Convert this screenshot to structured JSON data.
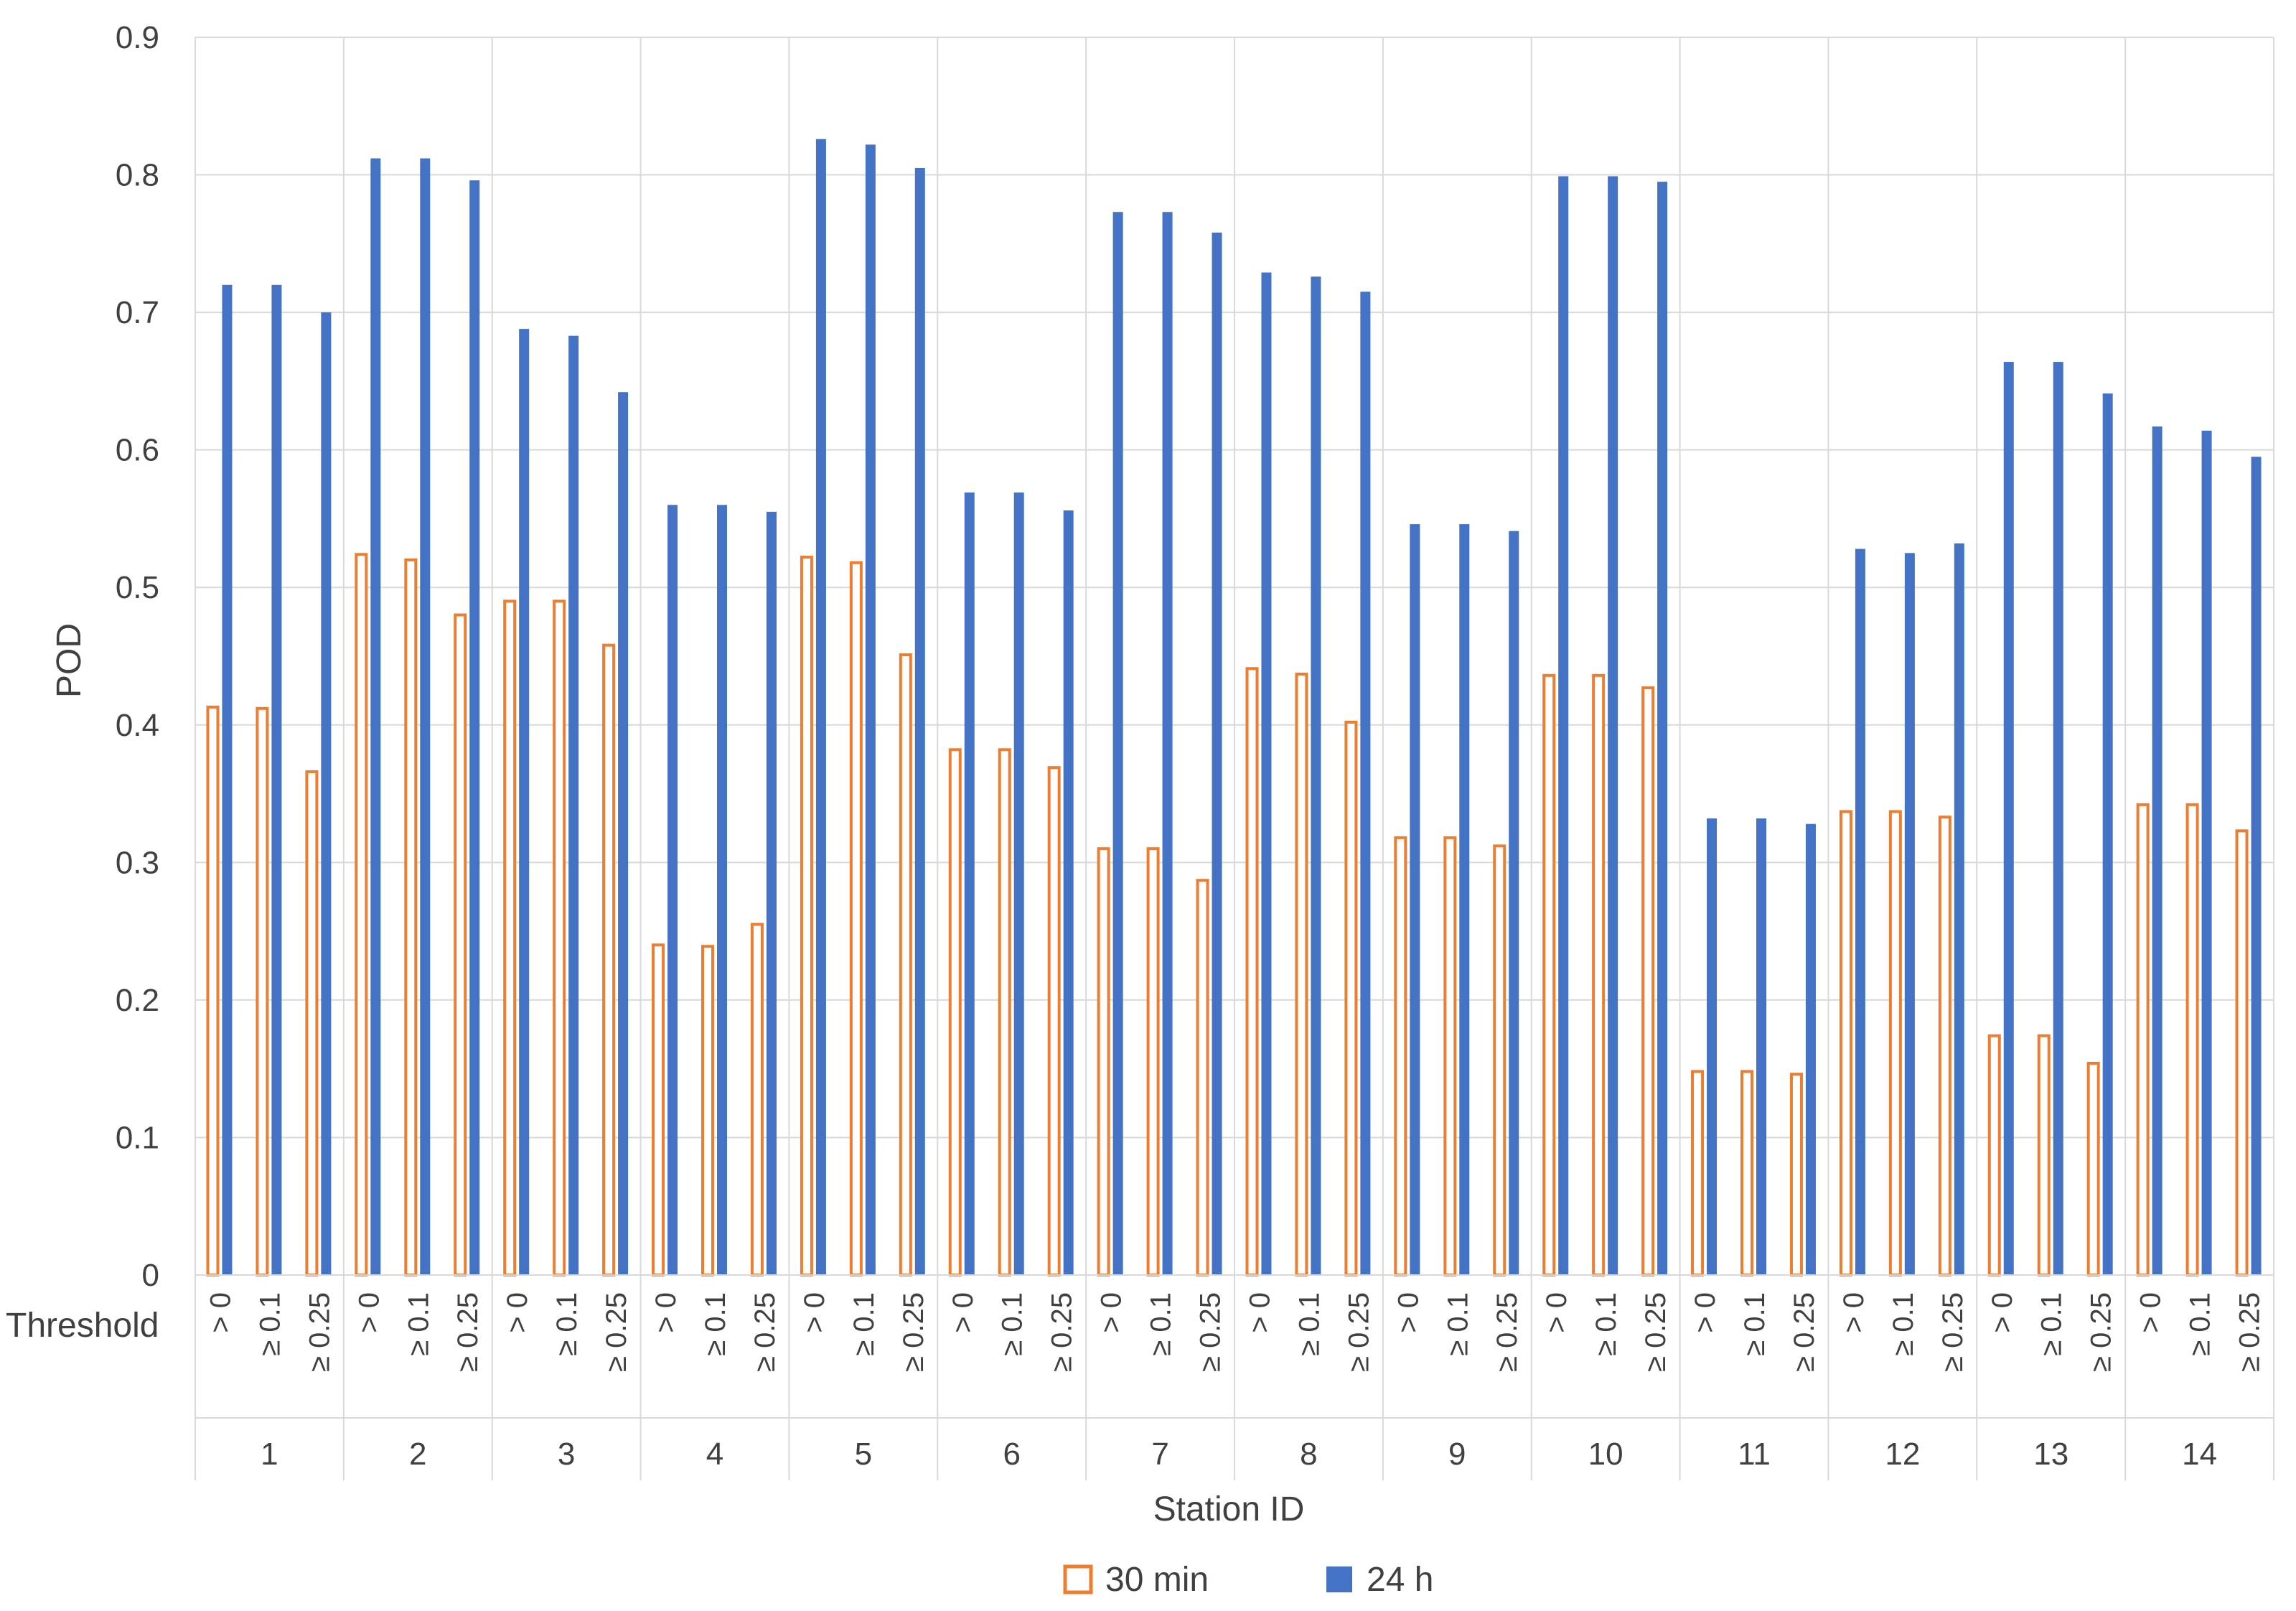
{
  "chart_data": {
    "type": "bar",
    "xlabel": "Station ID",
    "ylabel": "POD",
    "row_header": "Threshold",
    "ylim": [
      0,
      0.9
    ],
    "yticks": [
      "0",
      "0.1",
      "0.2",
      "0.3",
      "0.4",
      "0.5",
      "0.6",
      "0.7",
      "0.8",
      "0.9"
    ],
    "grid": true,
    "legend_position": "bottom",
    "stations": [
      "1",
      "2",
      "3",
      "4",
      "5",
      "6",
      "7",
      "8",
      "9",
      "10",
      "11",
      "12",
      "13",
      "14"
    ],
    "thresholds": [
      "> 0",
      "≥ 0.1",
      "≥ 0.25"
    ],
    "series": [
      {
        "name": "30 min",
        "color": "#ED7D31",
        "style": "outline",
        "values": [
          [
            0.413,
            0.412,
            0.366
          ],
          [
            0.524,
            0.52,
            0.48
          ],
          [
            0.49,
            0.49,
            0.458
          ],
          [
            0.24,
            0.239,
            0.255
          ],
          [
            0.522,
            0.518,
            0.451
          ],
          [
            0.382,
            0.382,
            0.369
          ],
          [
            0.31,
            0.31,
            0.287
          ],
          [
            0.441,
            0.437,
            0.402
          ],
          [
            0.318,
            0.318,
            0.312
          ],
          [
            0.436,
            0.436,
            0.427
          ],
          [
            0.148,
            0.148,
            0.146
          ],
          [
            0.337,
            0.337,
            0.333
          ],
          [
            0.174,
            0.174,
            0.154
          ],
          [
            0.342,
            0.342,
            0.323
          ]
        ]
      },
      {
        "name": "24 h",
        "color": "#4472C4",
        "style": "filled",
        "values": [
          [
            0.72,
            0.72,
            0.7
          ],
          [
            0.812,
            0.812,
            0.796
          ],
          [
            0.688,
            0.683,
            0.642
          ],
          [
            0.56,
            0.56,
            0.555
          ],
          [
            0.826,
            0.822,
            0.805
          ],
          [
            0.569,
            0.569,
            0.556
          ],
          [
            0.773,
            0.773,
            0.758
          ],
          [
            0.729,
            0.726,
            0.715
          ],
          [
            0.546,
            0.546,
            0.541
          ],
          [
            0.799,
            0.799,
            0.795
          ],
          [
            0.332,
            0.332,
            0.328
          ],
          [
            0.528,
            0.525,
            0.532
          ],
          [
            0.664,
            0.664,
            0.641
          ],
          [
            0.617,
            0.614,
            0.595
          ]
        ]
      }
    ]
  }
}
